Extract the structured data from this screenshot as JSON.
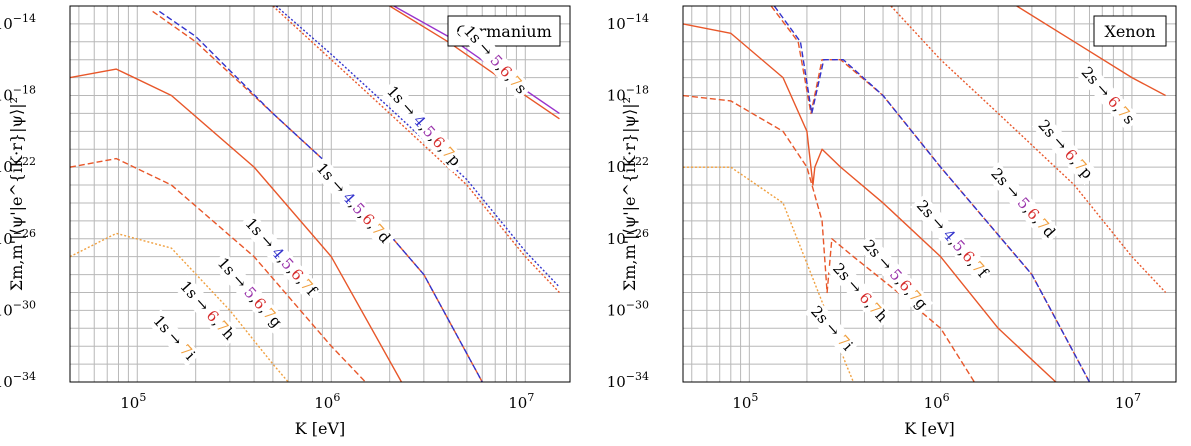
{
  "chart_data": [
    {
      "type": "line",
      "legend": "Germanium",
      "xlabel": "K [eV]",
      "ylabel": "Σm,m'|⟨ψ'|e^{iK·r}|ψ⟩|²",
      "xscale": "log",
      "yscale": "log",
      "xlim": [
        45000,
        17000000
      ],
      "ylim": [
        1e-34,
        1e-13
      ],
      "x_ticks": [
        {
          "value": 100000,
          "base": "10",
          "exp": "5"
        },
        {
          "value": 1000000,
          "base": "10",
          "exp": "6"
        },
        {
          "value": 10000000,
          "base": "10",
          "exp": "7"
        }
      ],
      "y_ticks": [
        {
          "value": 1e-14,
          "base": "10",
          "exp": "−14"
        },
        {
          "value": 1e-18,
          "base": "10",
          "exp": "−18"
        },
        {
          "value": 1e-22,
          "base": "10",
          "exp": "−22"
        },
        {
          "value": 1e-26,
          "base": "10",
          "exp": "−26"
        },
        {
          "value": 1e-30,
          "base": "10",
          "exp": "−30"
        },
        {
          "value": 1e-34,
          "base": "10",
          "exp": "−34"
        }
      ],
      "grid": true,
      "legend_position": "top-right",
      "series": [
        {
          "color": "#e8572a",
          "style": "solid",
          "points": [
            [
              45000,
              1e-17
            ],
            [
              78000,
              3e-17
            ],
            [
              150000,
              1e-18
            ],
            [
              400000,
              1e-22
            ],
            [
              1000000,
              1e-27
            ],
            [
              2300000,
              1e-34
            ]
          ]
        },
        {
          "color": "#e8572a",
          "style": "dashed",
          "points": [
            [
              45000,
              1e-22
            ],
            [
              78000,
              3e-22
            ],
            [
              150000,
              1e-23
            ],
            [
              400000,
              1e-27
            ],
            [
              1000000,
              1e-32
            ],
            [
              1500000,
              1e-34
            ]
          ]
        },
        {
          "color": "#f0a040",
          "style": "dotted",
          "points": [
            [
              45000,
              1e-27
            ],
            [
              78000,
              2e-26
            ],
            [
              150000,
              3e-27
            ],
            [
              300000,
              1e-30
            ],
            [
              500000,
              1e-33
            ],
            [
              600000,
              1e-34
            ]
          ]
        },
        {
          "color": "#e8572a",
          "style": "dashed",
          "points": [
            [
              120000,
              5e-14
            ],
            [
              200000,
              1e-15
            ],
            [
              500000,
              1e-19
            ],
            [
              1000000,
              1e-22
            ],
            [
              3000000,
              1e-28
            ],
            [
              6000000,
              1e-34
            ]
          ]
        },
        {
          "color": "#3333cc",
          "style": "dashed",
          "points": [
            [
              130000,
              5e-14
            ],
            [
              200000,
              2e-15
            ],
            [
              500000,
              1e-19
            ],
            [
              1000000,
              1e-22
            ],
            [
              3000000,
              1e-28
            ],
            [
              6000000,
              1e-34
            ]
          ]
        },
        {
          "color": "#e8572a",
          "style": "dotted",
          "points": [
            [
              500000,
              1e-13
            ],
            [
              1000000,
              1e-16
            ],
            [
              2000000,
              1e-19
            ],
            [
              5000000,
              1e-23
            ],
            [
              10000000,
              1e-27
            ],
            [
              15000000,
              1e-29
            ]
          ]
        },
        {
          "color": "#3333cc",
          "style": "dotted",
          "points": [
            [
              520000,
              1e-13
            ],
            [
              1000000,
              2e-16
            ],
            [
              2000000,
              2e-19
            ],
            [
              5000000,
              2e-23
            ],
            [
              10000000,
              2e-27
            ],
            [
              15000000,
              2e-29
            ]
          ]
        },
        {
          "color": "#e8572a",
          "style": "solid",
          "points": [
            [
              2000000,
              1e-13
            ],
            [
              4000000,
              1e-15
            ],
            [
              10000000,
              1e-18
            ],
            [
              15000000,
              5e-20
            ]
          ]
        },
        {
          "color": "#9933cc",
          "style": "solid",
          "points": [
            [
              2100000,
              1e-13
            ],
            [
              4000000,
              2e-15
            ],
            [
              10000000,
              2e-18
            ],
            [
              15000000,
              1e-19
            ]
          ]
        }
      ],
      "labels": [
        {
          "parts": [
            "1s → ",
            "5",
            ",",
            "6",
            ",",
            "7",
            "s"
          ],
          "x": 7000000,
          "y": 1e-16
        },
        {
          "parts": [
            "1s → ",
            "4",
            ",",
            "5",
            ",",
            "6",
            ",",
            "7",
            "p"
          ],
          "x": 3000000,
          "y": 2e-20
        },
        {
          "parts": [
            "1s → ",
            "4",
            ",",
            "5",
            ",",
            "6",
            ",",
            "7",
            "d"
          ],
          "x": 1300000,
          "y": 1e-24
        },
        {
          "parts": [
            "1s → ",
            "4",
            ",",
            "5",
            ",",
            "6",
            ",",
            "7",
            "f"
          ],
          "x": 550000,
          "y": 1e-27
        },
        {
          "parts": [
            "1s → ",
            "5",
            ",",
            "6",
            ",",
            "7",
            "g"
          ],
          "x": 380000,
          "y": 1e-29
        },
        {
          "parts": [
            "1s → ",
            "6",
            ",",
            "7",
            "h"
          ],
          "x": 230000,
          "y": 1e-30
        },
        {
          "parts": [
            "1s → ",
            "7",
            "i"
          ],
          "x": 155000,
          "y": 3e-32
        }
      ]
    },
    {
      "type": "line",
      "legend": "Xenon",
      "xlabel": "K [eV]",
      "ylabel": "Σm,m'|⟨ψ'|e^{iK·r}|ψ⟩|²",
      "xscale": "log",
      "yscale": "log",
      "xlim": [
        45000,
        17000000
      ],
      "ylim": [
        1e-34,
        1e-13
      ],
      "x_ticks": [
        {
          "value": 100000,
          "base": "10",
          "exp": "5"
        },
        {
          "value": 1000000,
          "base": "10",
          "exp": "6"
        },
        {
          "value": 10000000,
          "base": "10",
          "exp": "7"
        }
      ],
      "y_ticks": [
        {
          "value": 1e-14,
          "base": "10",
          "exp": "−14"
        },
        {
          "value": 1e-18,
          "base": "10",
          "exp": "−18"
        },
        {
          "value": 1e-22,
          "base": "10",
          "exp": "−22"
        },
        {
          "value": 1e-26,
          "base": "10",
          "exp": "−26"
        },
        {
          "value": 1e-30,
          "base": "10",
          "exp": "−30"
        },
        {
          "value": 1e-34,
          "base": "10",
          "exp": "−34"
        }
      ],
      "grid": true,
      "legend_position": "top-right",
      "series": [
        {
          "color": "#e8572a",
          "style": "solid",
          "points": [
            [
              45000,
              1e-14
            ],
            [
              80000,
              3e-15
            ],
            [
              150000,
              1e-17
            ],
            [
              200000,
              1e-20
            ],
            [
              215000,
              1e-23
            ],
            [
              220000,
              1e-22
            ],
            [
              240000,
              1e-21
            ],
            [
              300000,
              1e-22
            ],
            [
              500000,
              1e-24
            ],
            [
              1000000,
              1e-27
            ],
            [
              2000000,
              1e-31
            ],
            [
              4000000,
              1e-34
            ]
          ]
        },
        {
          "color": "#e8572a",
          "style": "dashed",
          "points": [
            [
              45000,
              1e-18
            ],
            [
              80000,
              5e-19
            ],
            [
              150000,
              1e-20
            ],
            [
              200000,
              1e-22
            ],
            [
              240000,
              1e-25
            ],
            [
              255000,
              1e-29
            ],
            [
              270000,
              1e-26
            ],
            [
              350000,
              1e-27
            ],
            [
              600000,
              1e-29
            ],
            [
              1000000,
              1e-31
            ],
            [
              1500000,
              1e-34
            ]
          ]
        },
        {
          "color": "#f0a040",
          "style": "dotted",
          "points": [
            [
              45000,
              1e-22
            ],
            [
              80000,
              1e-22
            ],
            [
              150000,
              1e-24
            ],
            [
              250000,
              1e-30
            ],
            [
              320000,
              1e-33
            ],
            [
              350000,
              1e-34
            ]
          ]
        },
        {
          "color": "#e8572a",
          "style": "dashed",
          "points": [
            [
              130000,
              1e-13
            ],
            [
              180000,
              1e-15
            ],
            [
              210000,
              1e-19
            ],
            [
              240000,
              1e-16
            ],
            [
              300000,
              1e-16
            ],
            [
              500000,
              1e-18
            ],
            [
              1000000,
              1e-22
            ],
            [
              3000000,
              1e-28
            ],
            [
              6000000,
              1e-34
            ]
          ]
        },
        {
          "color": "#3333cc",
          "style": "dashed",
          "points": [
            [
              135000,
              1e-13
            ],
            [
              185000,
              1e-15
            ],
            [
              212000,
              1e-19
            ],
            [
              245000,
              1e-16
            ],
            [
              310000,
              1e-16
            ],
            [
              500000,
              1e-18
            ],
            [
              1000000,
              1e-22
            ],
            [
              3000000,
              1e-28
            ],
            [
              6000000,
              1e-34
            ]
          ]
        },
        {
          "color": "#e8572a",
          "style": "dotted",
          "points": [
            [
              550000,
              1e-13
            ],
            [
              1000000,
              1e-16
            ],
            [
              2000000,
              1e-19
            ],
            [
              5000000,
              1e-23
            ],
            [
              10000000,
              1e-27
            ],
            [
              15000000,
              1e-29
            ]
          ]
        },
        {
          "color": "#e8572a",
          "style": "solid",
          "points": [
            [
              2500000,
              1e-13
            ],
            [
              5000000,
              1e-15
            ],
            [
              10000000,
              1e-17
            ],
            [
              15000000,
              1e-18
            ]
          ]
        }
      ],
      "labels": [
        {
          "parts": [
            "2s → ",
            "6",
            ",",
            "7",
            "s"
          ],
          "x": 7500000,
          "y": 1e-18
        },
        {
          "parts": [
            "2s → ",
            "6",
            ",",
            "7",
            "p"
          ],
          "x": 4500000,
          "y": 1e-21
        },
        {
          "parts": [
            "2s → ",
            "5",
            ",",
            "6",
            ",",
            "7",
            "d"
          ],
          "x": 2700000,
          "y": 1e-24
        },
        {
          "parts": [
            "2s → ",
            "4",
            ",",
            "5",
            ",",
            "6",
            ",",
            "7",
            "f"
          ],
          "x": 1150000,
          "y": 1e-26
        },
        {
          "parts": [
            "2s → ",
            "5",
            ",",
            "6",
            ",",
            "7",
            "g"
          ],
          "x": 580000,
          "y": 1e-28
        },
        {
          "parts": [
            "2s → ",
            "6",
            ",",
            "7",
            "h"
          ],
          "x": 380000,
          "y": 1e-29
        },
        {
          "parts": [
            "2s → ",
            "7",
            "i"
          ],
          "x": 270000,
          "y": 1e-31
        }
      ]
    }
  ],
  "digit_colors": {
    "4": "#3333cc",
    "5": "#9933aa",
    "6": "#d62c2c",
    "7": "#f0a040"
  }
}
